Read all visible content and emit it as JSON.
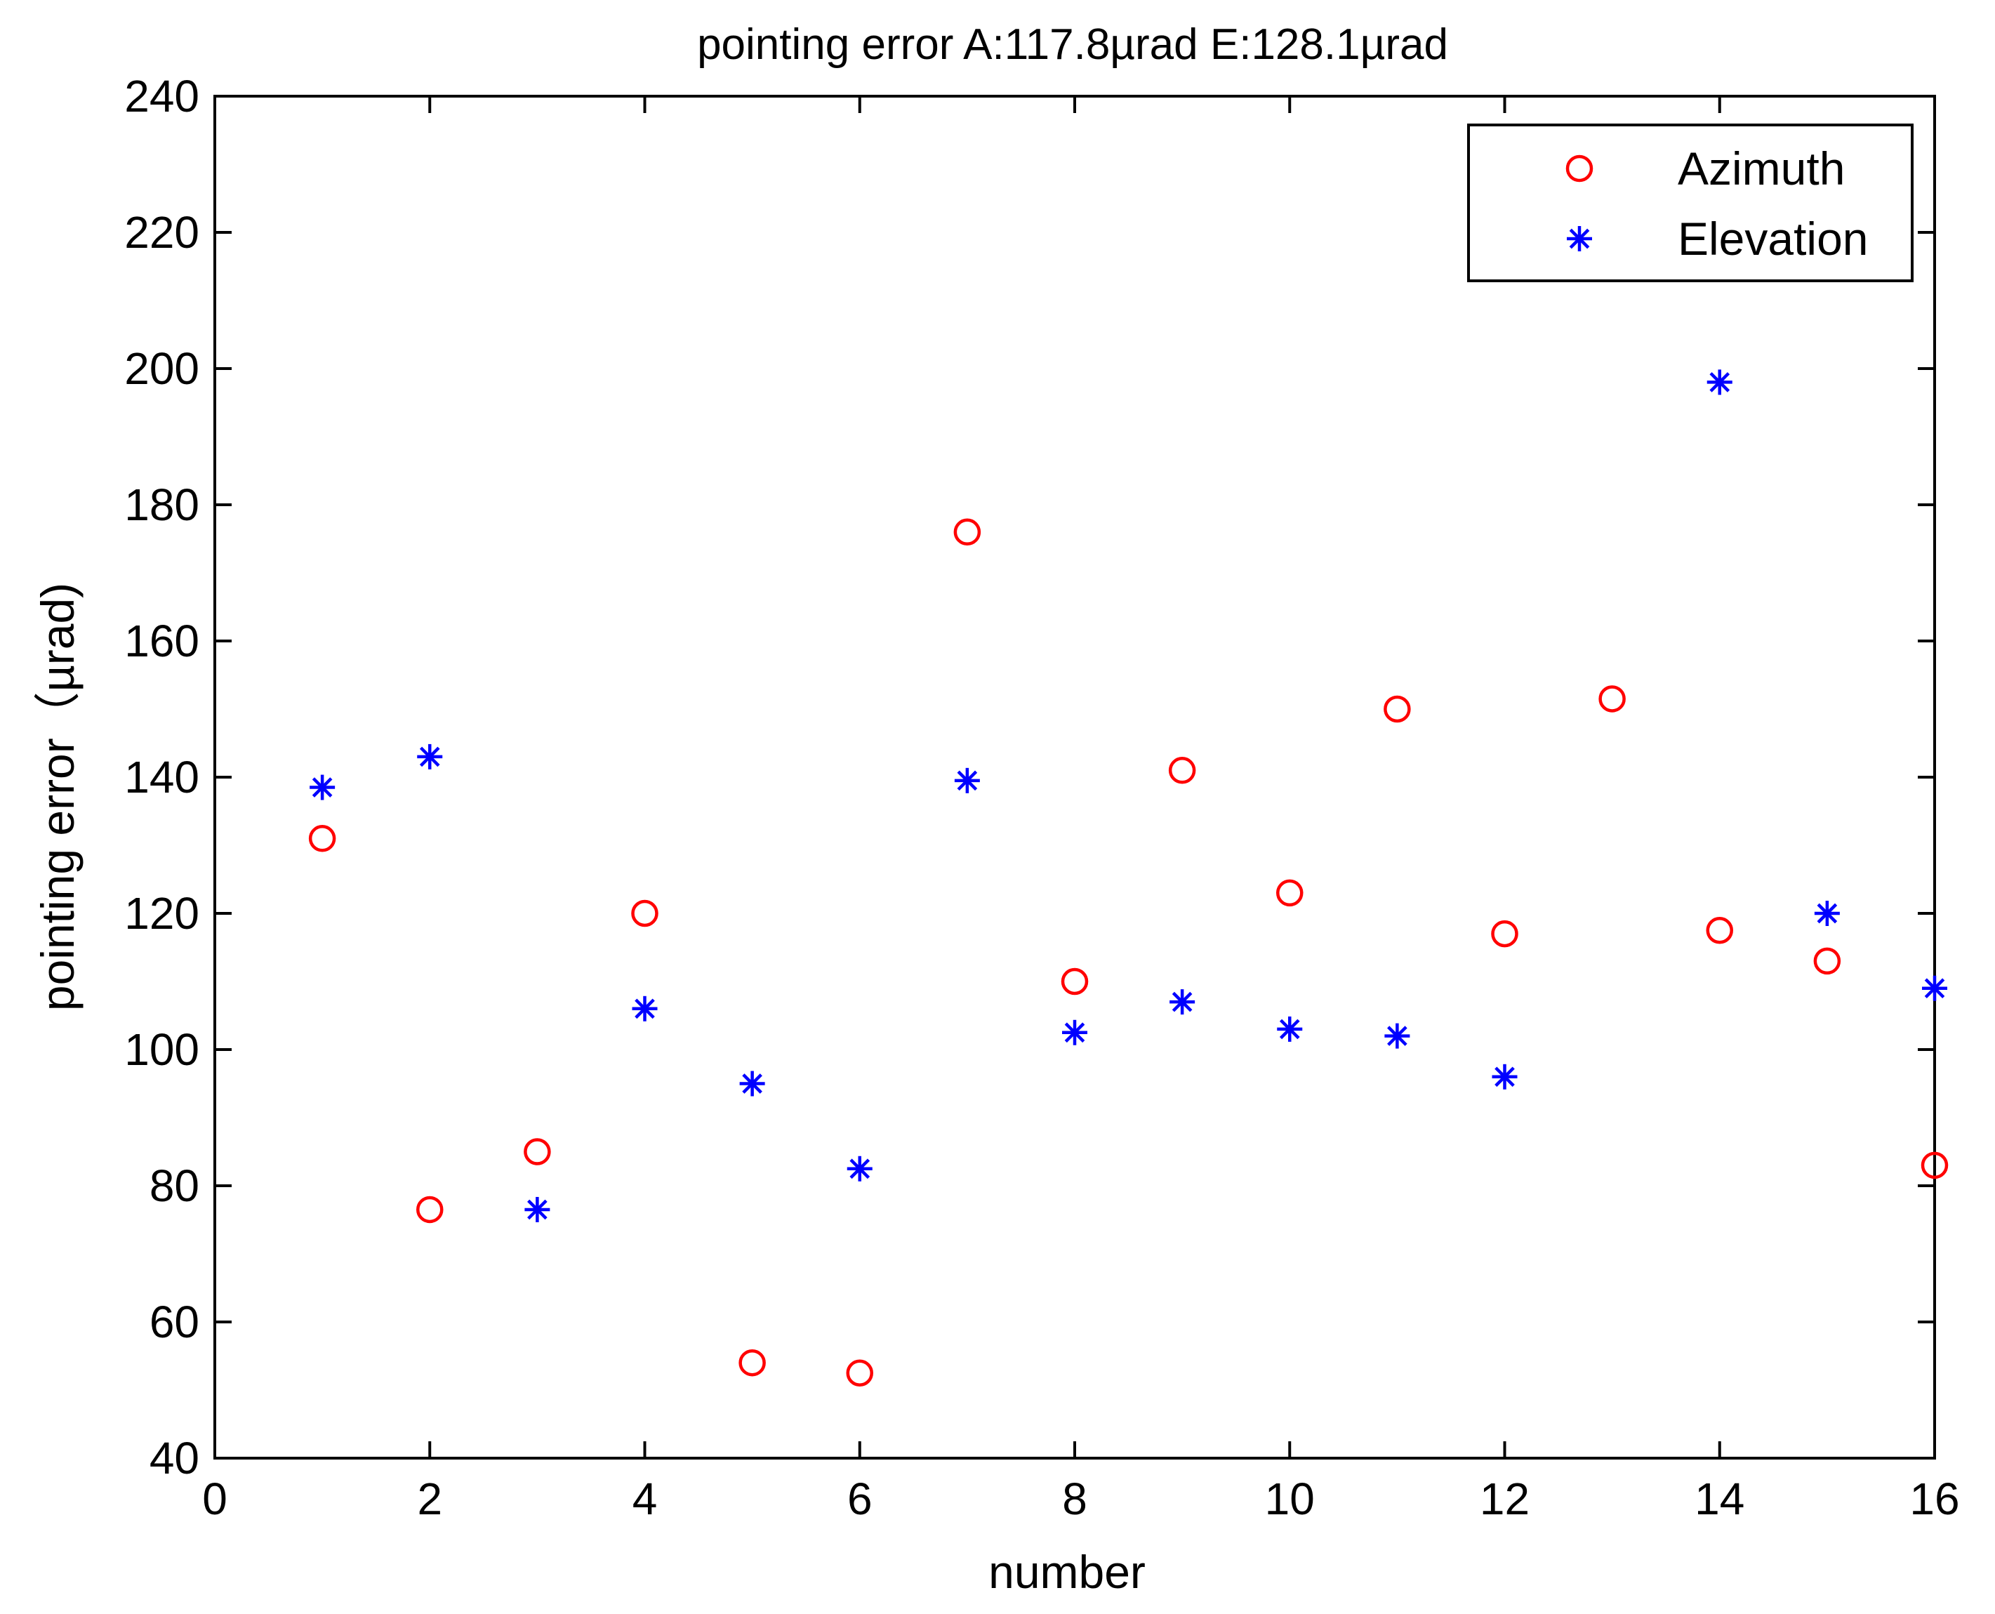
{
  "chart_data": {
    "type": "scatter",
    "title": "pointing error A:117.8µrad E:128.1µrad",
    "xlabel": "number",
    "ylabel": "pointing error（µrad)",
    "xlim": [
      0,
      16
    ],
    "ylim": [
      40,
      240
    ],
    "xticks": [
      0,
      2,
      4,
      6,
      8,
      10,
      12,
      14,
      16
    ],
    "yticks": [
      40,
      60,
      80,
      100,
      120,
      140,
      160,
      180,
      200,
      220,
      240
    ],
    "grid": false,
    "legend_position": "top-right",
    "series": [
      {
        "name": "Azimuth",
        "marker": "circle",
        "color": "#ff0000",
        "points": [
          {
            "x": 1,
            "y": 131
          },
          {
            "x": 2,
            "y": 76.5
          },
          {
            "x": 3,
            "y": 85
          },
          {
            "x": 4,
            "y": 120
          },
          {
            "x": 5,
            "y": 54
          },
          {
            "x": 6,
            "y": 52.5
          },
          {
            "x": 7,
            "y": 176
          },
          {
            "x": 8,
            "y": 110
          },
          {
            "x": 9,
            "y": 141
          },
          {
            "x": 10,
            "y": 123
          },
          {
            "x": 11,
            "y": 150
          },
          {
            "x": 12,
            "y": 117
          },
          {
            "x": 13,
            "y": 151.5
          },
          {
            "x": 14,
            "y": 117.5
          },
          {
            "x": 15,
            "y": 113
          },
          {
            "x": 16,
            "y": 83
          }
        ]
      },
      {
        "name": "Elevation",
        "marker": "asterisk",
        "color": "#0000ff",
        "points": [
          {
            "x": 1,
            "y": 138.5
          },
          {
            "x": 2,
            "y": 143
          },
          {
            "x": 3,
            "y": 76.5
          },
          {
            "x": 4,
            "y": 106
          },
          {
            "x": 5,
            "y": 95
          },
          {
            "x": 6,
            "y": 82.5
          },
          {
            "x": 7,
            "y": 139.5
          },
          {
            "x": 8,
            "y": 102.5
          },
          {
            "x": 9,
            "y": 107
          },
          {
            "x": 10,
            "y": 103
          },
          {
            "x": 11,
            "y": 102
          },
          {
            "x": 12,
            "y": 96
          },
          {
            "x": 14,
            "y": 198
          },
          {
            "x": 15,
            "y": 120
          },
          {
            "x": 16,
            "y": 109
          }
        ]
      }
    ]
  }
}
